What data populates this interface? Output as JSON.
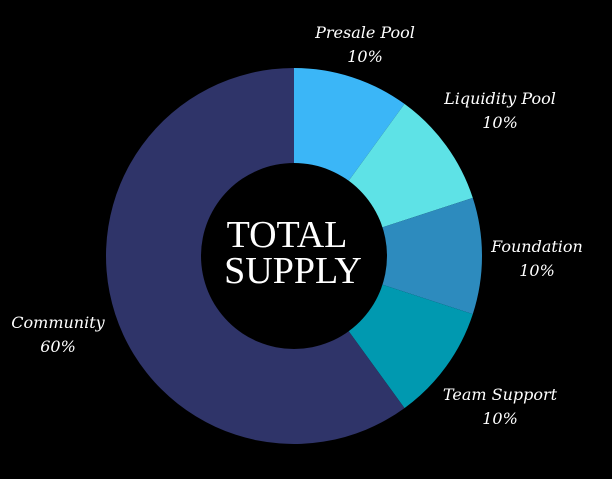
{
  "chart_data": {
    "type": "pie",
    "donut": true,
    "center_label": [
      "TOTAL",
      "SUPPLY"
    ],
    "categories": [
      "Presale Pool",
      "Liquidity Pool",
      "Foundation",
      "Team Support",
      "Community"
    ],
    "values": [
      10,
      10,
      10,
      10,
      60
    ],
    "value_labels": [
      "10%",
      "10%",
      "10%",
      "10%",
      "60%"
    ],
    "colors": [
      "#3bb6f7",
      "#5ee2e6",
      "#2d8bbe",
      "#0099b0",
      "#2f3469"
    ],
    "start_angle": "12 o'clock",
    "direction": "clockwise"
  }
}
